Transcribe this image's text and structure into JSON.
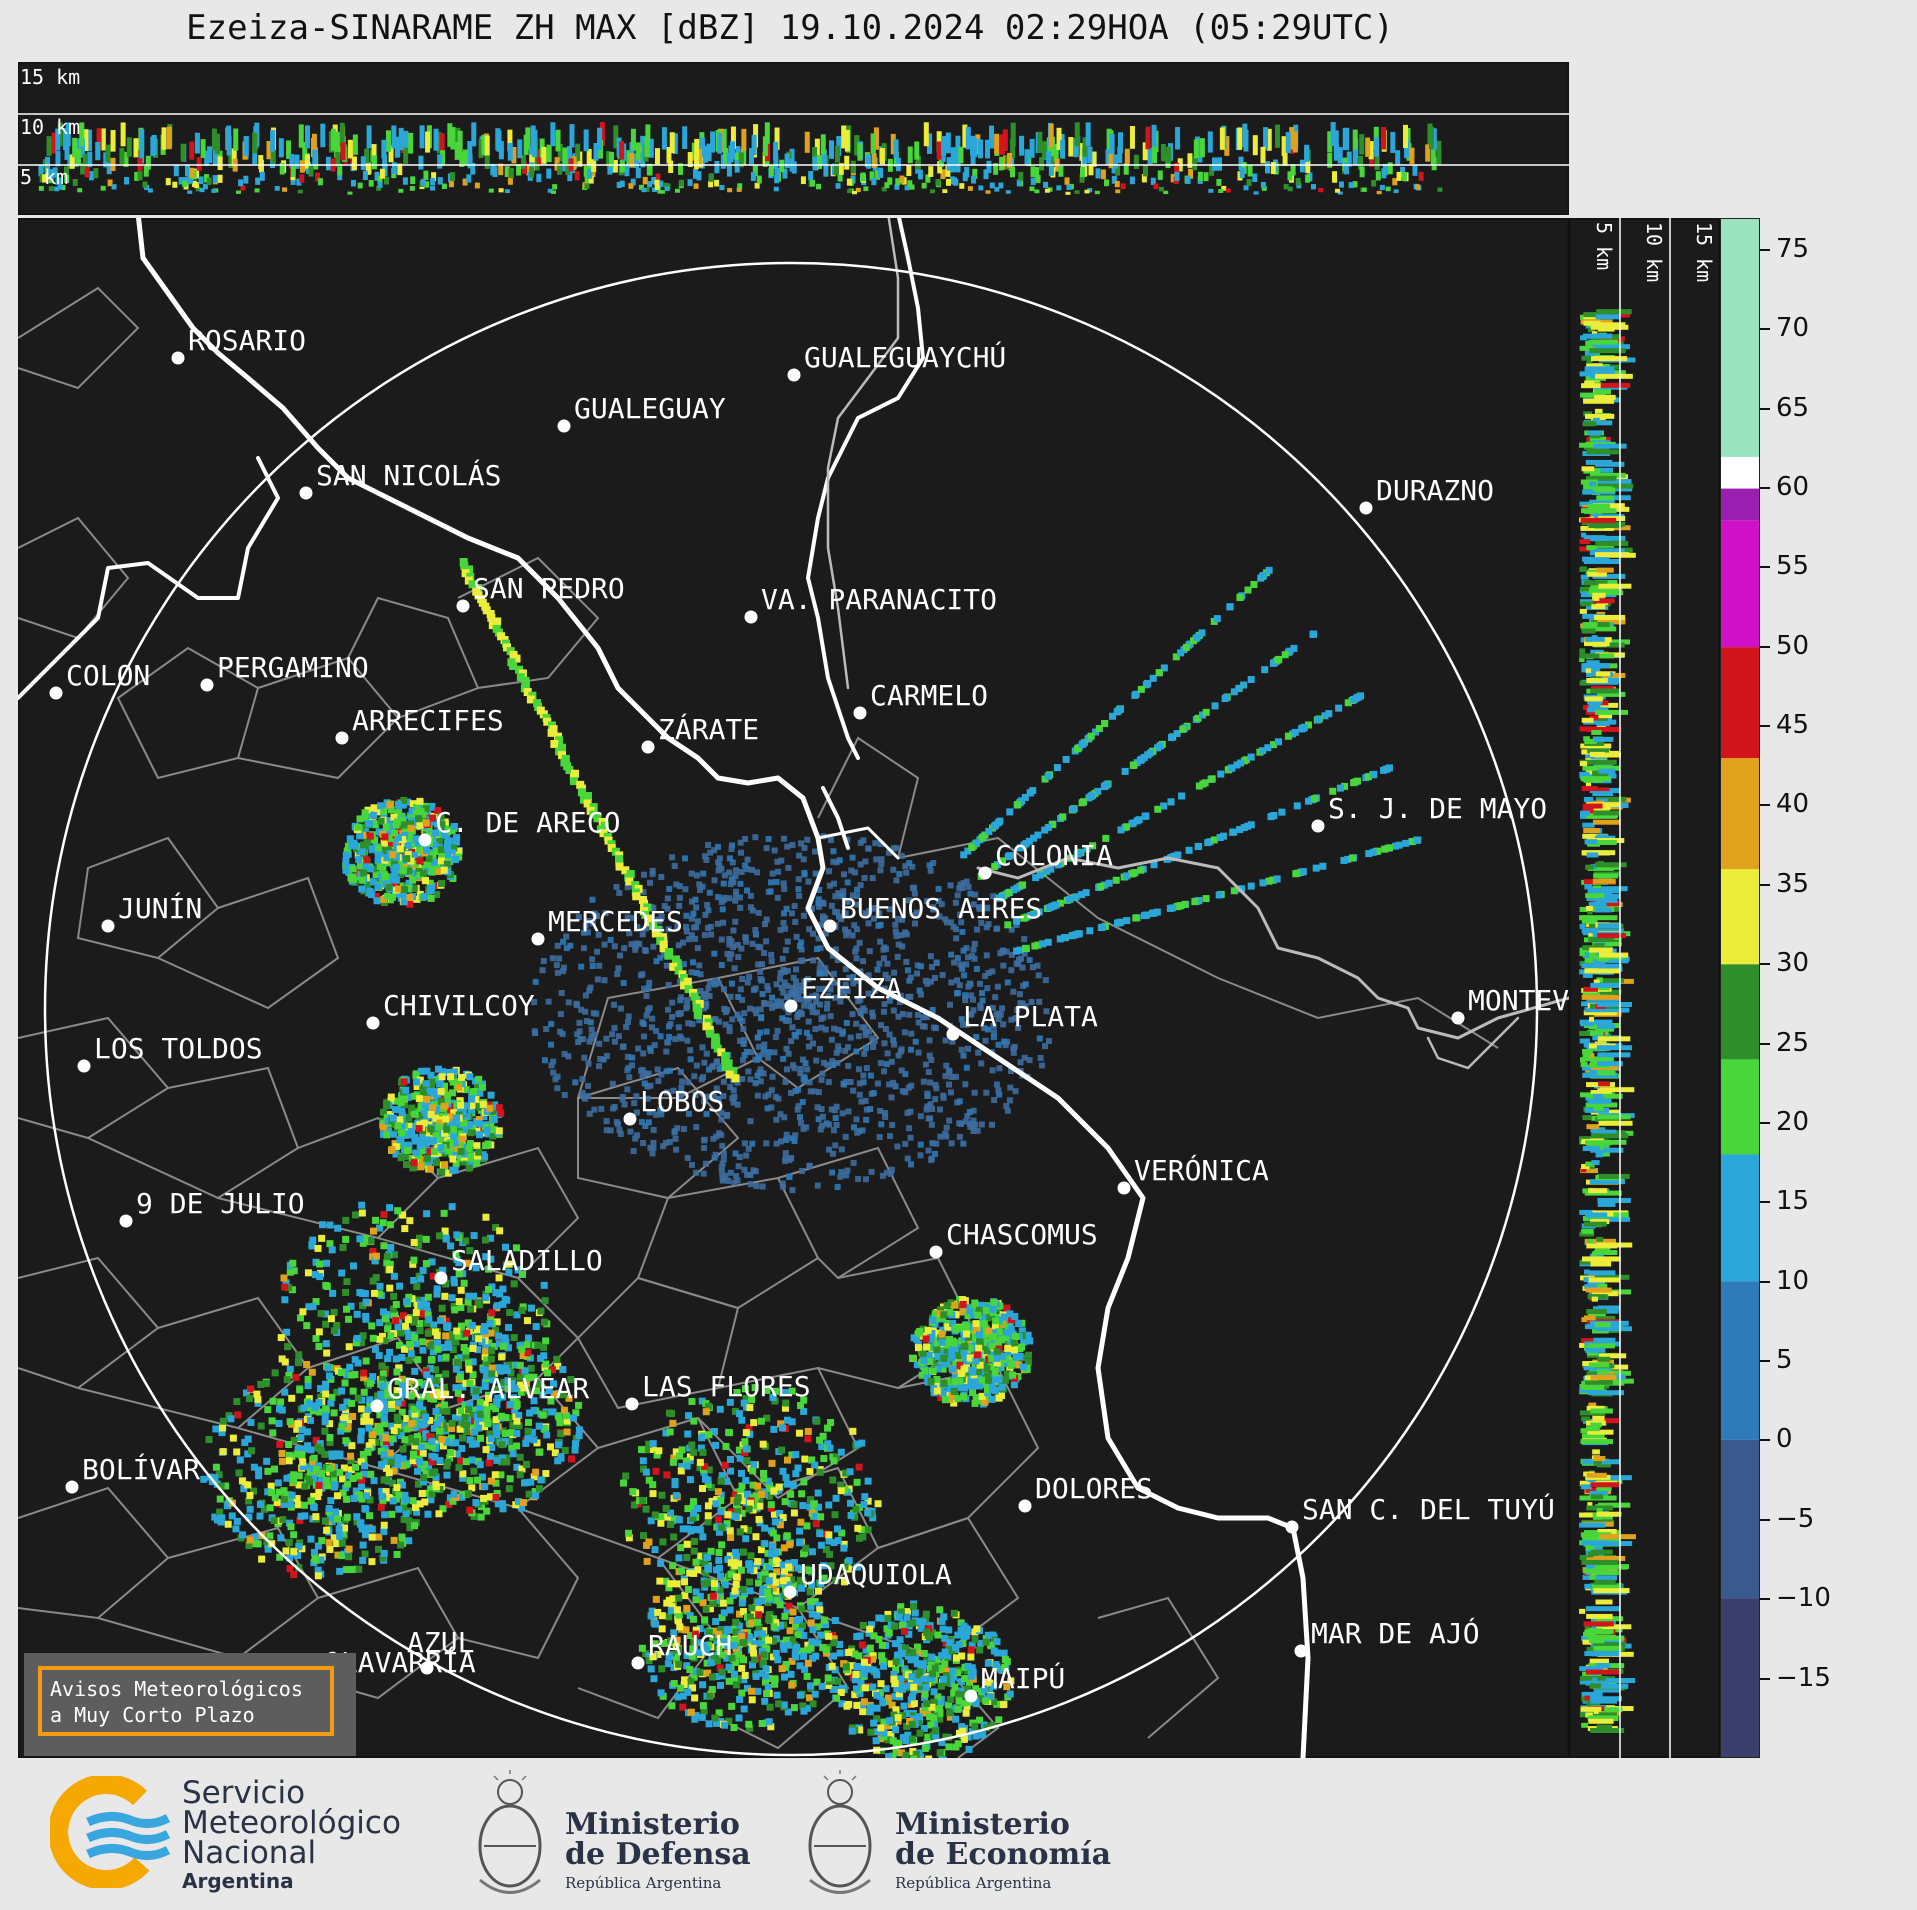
{
  "title": "Ezeiza-SINARAME ZH MAX [dBZ] 19.10.2024 02:29HOA (05:29UTC)",
  "top_panel_labels": [
    "15 km",
    "10 km",
    "5 km"
  ],
  "side_panel_labels": [
    "5 km",
    "10 km",
    "15 km"
  ],
  "colorbar": {
    "ticks": [
      "75",
      "70",
      "65",
      "60",
      "55",
      "50",
      "45",
      "40",
      "35",
      "30",
      "25",
      "20",
      "15",
      "10",
      "5",
      "0",
      "−5",
      "−10",
      "−15"
    ],
    "colors": [
      {
        "from": -20,
        "to": -10,
        "color": "#3a3f6b"
      },
      {
        "from": -10,
        "to": 0,
        "color": "#3a5a8f"
      },
      {
        "from": 0,
        "to": 10,
        "color": "#2f7ab8"
      },
      {
        "from": 10,
        "to": 18,
        "color": "#2aa6d8"
      },
      {
        "from": 18,
        "to": 24,
        "color": "#49d63a"
      },
      {
        "from": 24,
        "to": 30,
        "color": "#2e8f2a"
      },
      {
        "from": 30,
        "to": 36,
        "color": "#ecec3a"
      },
      {
        "from": 36,
        "to": 43,
        "color": "#e0a21c"
      },
      {
        "from": 43,
        "to": 50,
        "color": "#d2141c"
      },
      {
        "from": 50,
        "to": 58,
        "color": "#d010c8"
      },
      {
        "from": 58,
        "to": 60,
        "color": "#9a1fb0"
      },
      {
        "from": 60,
        "to": 62,
        "color": "#ffffff"
      },
      {
        "from": 62,
        "to": 77,
        "color": "#9be3c0"
      }
    ]
  },
  "cities": [
    {
      "name": "ROSARIO"
    },
    {
      "name": "GUALEGUAYCHÚ"
    },
    {
      "name": "GUALEGUAY"
    },
    {
      "name": "SAN NICOLÁS"
    },
    {
      "name": "DURAZNO"
    },
    {
      "name": "SAN PEDRO"
    },
    {
      "name": "VA. PARANACITO"
    },
    {
      "name": "COLON"
    },
    {
      "name": "PERGAMINO"
    },
    {
      "name": "CARMELO"
    },
    {
      "name": "ARRECIFES"
    },
    {
      "name": "ZÁRATE"
    },
    {
      "name": "S. J. DE MAYO"
    },
    {
      "name": "C. DE ARECO"
    },
    {
      "name": "COLONIA"
    },
    {
      "name": "JUNÍN"
    },
    {
      "name": "BUENOS AIRES"
    },
    {
      "name": "MERCEDES"
    },
    {
      "name": "MONTEVIDEO"
    },
    {
      "name": "EZEIZA"
    },
    {
      "name": "CHIVILCOY"
    },
    {
      "name": "LA PLATA"
    },
    {
      "name": "LOS TOLDOS"
    },
    {
      "name": "LOBOS"
    },
    {
      "name": "VERÓNICA"
    },
    {
      "name": "9 DE JULIO"
    },
    {
      "name": "CHASCOMUS"
    },
    {
      "name": "SALADILLO"
    },
    {
      "name": "GRAL. ALVEAR"
    },
    {
      "name": "LAS FLORES"
    },
    {
      "name": "BOLÍVAR"
    },
    {
      "name": "DOLORES"
    },
    {
      "name": "SAN C. DEL TUYÚ"
    },
    {
      "name": "UDAQUIOLA"
    },
    {
      "name": "MAR DE AJÓ"
    },
    {
      "name": "AZUL"
    },
    {
      "name": "RAUCH"
    },
    {
      "name": "OLAVARRÍA"
    },
    {
      "name": "MAIPÚ"
    }
  ],
  "notice": {
    "line1": "Avisos Meteorológicos",
    "line2": "a Muy Corto Plazo"
  },
  "logos": {
    "smn": {
      "line1": "Servicio",
      "line2": "Meteorológico",
      "line3": "Nacional",
      "line4": "Argentina"
    },
    "defensa": {
      "line1": "Ministerio",
      "line2": "de Defensa",
      "line3": "República Argentina"
    },
    "economia": {
      "line1": "Ministerio",
      "line2": "de Economía",
      "line3": "República Argentina"
    }
  }
}
